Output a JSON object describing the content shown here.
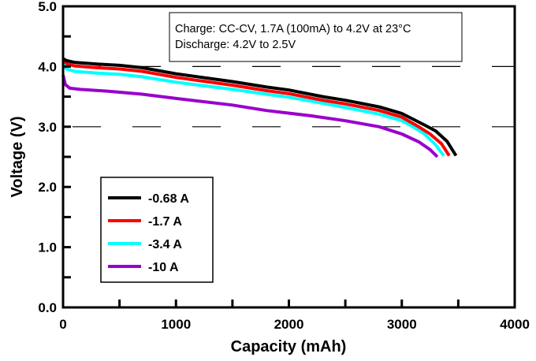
{
  "chart_data": {
    "type": "line",
    "xlabel": "Capacity (mAh)",
    "ylabel": "Voltage (V)",
    "xlim": [
      0,
      4000
    ],
    "ylim": [
      0,
      5.0
    ],
    "xticks": [
      "0",
      "1000",
      "2000",
      "3000",
      "4000"
    ],
    "yticks": [
      "0.0",
      "1.0",
      "2.0",
      "3.0",
      "4.0",
      "5.0"
    ],
    "grid": "dashed horizontal at 3.0 and 4.0",
    "annotation": [
      "Charge: CC-CV, 1.7A (100mA) to 4.2V at 23°C",
      "Discharge: 4.2V to 2.5V"
    ],
    "legend_position": "lower-left",
    "series": [
      {
        "name": "-0.68 A",
        "color": "#000000",
        "x": [
          0,
          30,
          100,
          300,
          500,
          700,
          1000,
          1500,
          1800,
          2000,
          2300,
          2500,
          2800,
          3000,
          3200,
          3300,
          3400,
          3480
        ],
        "y": [
          4.13,
          4.1,
          4.07,
          4.04,
          4.02,
          3.98,
          3.88,
          3.75,
          3.66,
          3.61,
          3.5,
          3.44,
          3.33,
          3.22,
          3.03,
          2.93,
          2.76,
          2.52
        ]
      },
      {
        "name": "-1.7 A",
        "color": "#ff0000",
        "x": [
          0,
          30,
          100,
          300,
          500,
          700,
          1000,
          1500,
          1800,
          2000,
          2300,
          2500,
          2800,
          3000,
          3150,
          3250,
          3350,
          3420
        ],
        "y": [
          4.12,
          4.05,
          4.01,
          3.98,
          3.96,
          3.92,
          3.82,
          3.69,
          3.6,
          3.55,
          3.44,
          3.38,
          3.27,
          3.16,
          3.0,
          2.88,
          2.72,
          2.52
        ]
      },
      {
        "name": "-3.4 A",
        "color": "#00ffff",
        "x": [
          0,
          30,
          100,
          300,
          500,
          700,
          1000,
          1500,
          1800,
          2000,
          2300,
          2500,
          2800,
          3000,
          3100,
          3200,
          3300,
          3370
        ],
        "y": [
          4.05,
          3.96,
          3.92,
          3.89,
          3.87,
          3.83,
          3.74,
          3.62,
          3.54,
          3.49,
          3.39,
          3.32,
          3.21,
          3.1,
          3.0,
          2.88,
          2.7,
          2.52
        ]
      },
      {
        "name": "-10 A",
        "color": "#9900cc",
        "x": [
          0,
          20,
          60,
          150,
          400,
          700,
          1000,
          1500,
          1800,
          2200,
          2500,
          2800,
          3000,
          3150,
          3250,
          3315
        ],
        "y": [
          3.86,
          3.7,
          3.64,
          3.62,
          3.59,
          3.54,
          3.47,
          3.36,
          3.27,
          3.18,
          3.1,
          3.0,
          2.88,
          2.75,
          2.62,
          2.5
        ]
      }
    ]
  }
}
